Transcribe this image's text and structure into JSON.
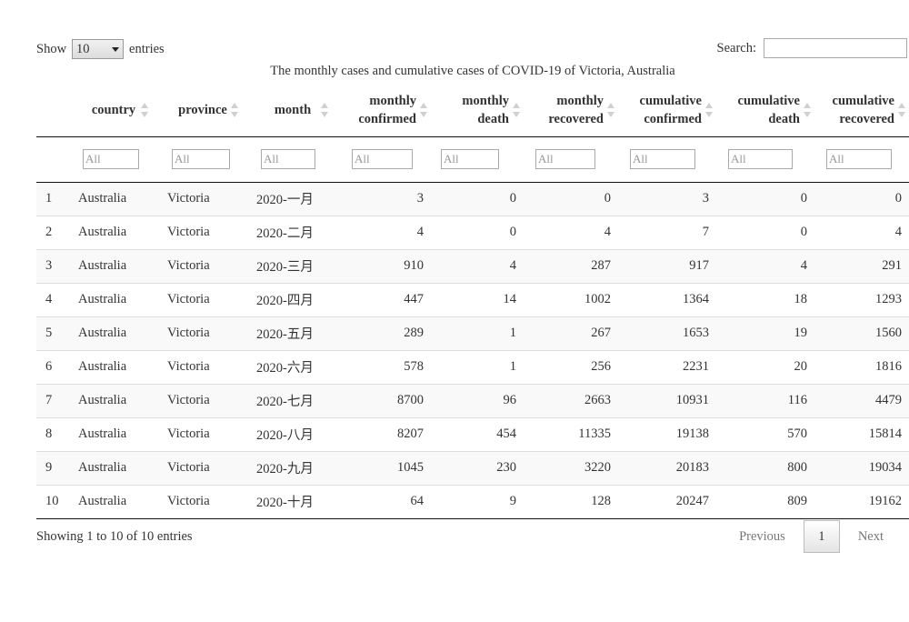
{
  "length_control": {
    "prefix": "Show",
    "selected": "10",
    "suffix": "entries"
  },
  "search": {
    "label": "Search:",
    "value": ""
  },
  "caption": "The monthly cases and cumulative cases of COVID-19 of Victoria, Australia",
  "columns": [
    {
      "key": "idx",
      "line1": "",
      "line2": "",
      "align": "left"
    },
    {
      "key": "country",
      "line1": "country",
      "line2": "",
      "align": "center"
    },
    {
      "key": "province",
      "line1": "province",
      "line2": "",
      "align": "center"
    },
    {
      "key": "month",
      "line1": "month",
      "line2": "",
      "align": "center"
    },
    {
      "key": "monthly_confirmed",
      "line1": "monthly",
      "line2": "confirmed",
      "align": "right"
    },
    {
      "key": "monthly_death",
      "line1": "monthly",
      "line2": "death",
      "align": "right"
    },
    {
      "key": "monthly_recovered",
      "line1": "monthly",
      "line2": "recovered",
      "align": "right"
    },
    {
      "key": "cumulative_confirmed",
      "line1": "cumulative",
      "line2": "confirmed",
      "align": "right"
    },
    {
      "key": "cumulative_death",
      "line1": "cumulative",
      "line2": "death",
      "align": "right"
    },
    {
      "key": "cumulative_recovered",
      "line1": "cumulative",
      "line2": "recovered",
      "align": "right"
    }
  ],
  "filter_placeholder": "All",
  "rows": [
    [
      "1",
      "Australia",
      "Victoria",
      "2020-一月",
      "3",
      "0",
      "0",
      "3",
      "0",
      "0"
    ],
    [
      "2",
      "Australia",
      "Victoria",
      "2020-二月",
      "4",
      "0",
      "4",
      "7",
      "0",
      "4"
    ],
    [
      "3",
      "Australia",
      "Victoria",
      "2020-三月",
      "910",
      "4",
      "287",
      "917",
      "4",
      "291"
    ],
    [
      "4",
      "Australia",
      "Victoria",
      "2020-四月",
      "447",
      "14",
      "1002",
      "1364",
      "18",
      "1293"
    ],
    [
      "5",
      "Australia",
      "Victoria",
      "2020-五月",
      "289",
      "1",
      "267",
      "1653",
      "19",
      "1560"
    ],
    [
      "6",
      "Australia",
      "Victoria",
      "2020-六月",
      "578",
      "1",
      "256",
      "2231",
      "20",
      "1816"
    ],
    [
      "7",
      "Australia",
      "Victoria",
      "2020-七月",
      "8700",
      "96",
      "2663",
      "10931",
      "116",
      "4479"
    ],
    [
      "8",
      "Australia",
      "Victoria",
      "2020-八月",
      "8207",
      "454",
      "11335",
      "19138",
      "570",
      "15814"
    ],
    [
      "9",
      "Australia",
      "Victoria",
      "2020-九月",
      "1045",
      "230",
      "3220",
      "20183",
      "800",
      "19034"
    ],
    [
      "10",
      "Australia",
      "Victoria",
      "2020-十月",
      "64",
      "9",
      "128",
      "20247",
      "809",
      "19162"
    ]
  ],
  "info_text": "Showing 1 to 10 of 10 entries",
  "pagination": {
    "previous": "Previous",
    "current": "1",
    "next": "Next"
  }
}
